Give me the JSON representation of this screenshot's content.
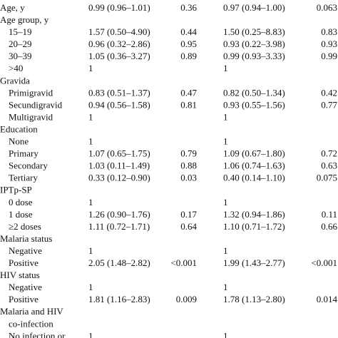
{
  "table": {
    "rows": [
      {
        "label": "Age, y",
        "level": 0,
        "cells": [
          "0.99 (0.96–1.01)",
          "0.36",
          "0.97 (0.94–1.00)",
          "0.063"
        ]
      },
      {
        "label": "Age group, y",
        "level": 0
      },
      {
        "label": "15–19",
        "level": 1,
        "cells": [
          "1.57 (0.50–4.90)",
          "0.44",
          "1.50 (0.25–8.83)",
          "0.83"
        ]
      },
      {
        "label": "20–29",
        "level": 1,
        "cells": [
          "0.96 (0.32–2.86)",
          "0.95",
          "0.93 (0.22–3.98)",
          "0.93"
        ]
      },
      {
        "label": "30–39",
        "level": 1,
        "cells": [
          "1.05 (0.36–3.27)",
          "0.89",
          "0.99 (0.93–3.33)",
          "0.99"
        ]
      },
      {
        "label": ">40",
        "level": 1,
        "cells": [
          "1",
          null,
          "1",
          null
        ]
      },
      {
        "label": "Gravida",
        "level": 0
      },
      {
        "label": "Primigravid",
        "level": 1,
        "cells": [
          "0.83 (0.51–1.37)",
          "0.47",
          "0.82 (0.50–1.34)",
          "0.42"
        ]
      },
      {
        "label": "Secundigravid",
        "level": 1,
        "cells": [
          "0.94 (0.56–1.58)",
          "0.81",
          "0.93 (0.55–1.56)",
          "0.77"
        ]
      },
      {
        "label": "Multigravid",
        "level": 1,
        "cells": [
          "1",
          null,
          "1",
          null
        ]
      },
      {
        "label": "Education",
        "level": 0
      },
      {
        "label": "None",
        "level": 1,
        "cells": [
          "1",
          null,
          "1",
          null
        ]
      },
      {
        "label": "Primary",
        "level": 1,
        "cells": [
          "1.07 (0.65–1.75)",
          "0.79",
          "1.09 (0.67–1.80)",
          "0.72"
        ]
      },
      {
        "label": "Secondary",
        "level": 1,
        "cells": [
          "1.03 (0.11–1.49)",
          "0.88",
          "1.06 (0.74–1.63)",
          "0.63"
        ]
      },
      {
        "label": "Tertiary",
        "level": 1,
        "cells": [
          "0.33 (0.12–0.90)",
          "0.03",
          "0.40 (0.14–1.10)",
          "0.075"
        ]
      },
      {
        "label": "IPTp-SP",
        "level": 0
      },
      {
        "label": "0 dose",
        "level": 1,
        "cells": [
          "1",
          null,
          "1",
          null
        ]
      },
      {
        "label": "1 dose",
        "level": 1,
        "cells": [
          "1.26 (0.90–1.76)",
          "0.17",
          "1.32 (0.94–1.86)",
          "0.11"
        ]
      },
      {
        "label": "≥2 doses",
        "level": 1,
        "cells": [
          "1.11 (0.72–1.71)",
          "0.64",
          "1.10 (0.71–1.72)",
          "0.66"
        ]
      },
      {
        "label": "Malaria status",
        "level": 0
      },
      {
        "label": "Negative",
        "level": 1,
        "cells": [
          "1",
          null,
          "1",
          null
        ]
      },
      {
        "label": "Positive",
        "level": 1,
        "cells": [
          "2.05 (1.48–2.82)",
          "<0.001",
          "1.99 (1.43–2.77)",
          "<0.001"
        ]
      },
      {
        "label": "HIV status",
        "level": 0
      },
      {
        "label": "Negative",
        "level": 1,
        "cells": [
          "1",
          null,
          "1",
          null
        ]
      },
      {
        "label": "Positive",
        "level": 1,
        "cells": [
          "1.81 (1.16–2.83)",
          "0.009",
          "1.78 (1.13–2.80)",
          "0.014"
        ]
      },
      {
        "label": "Malaria and HIV",
        "level": 0
      },
      {
        "label": "co-infection",
        "level": 1
      },
      {
        "label": "No infection or",
        "level": 1,
        "cells": [
          "1",
          null,
          "1",
          null
        ]
      }
    ]
  }
}
